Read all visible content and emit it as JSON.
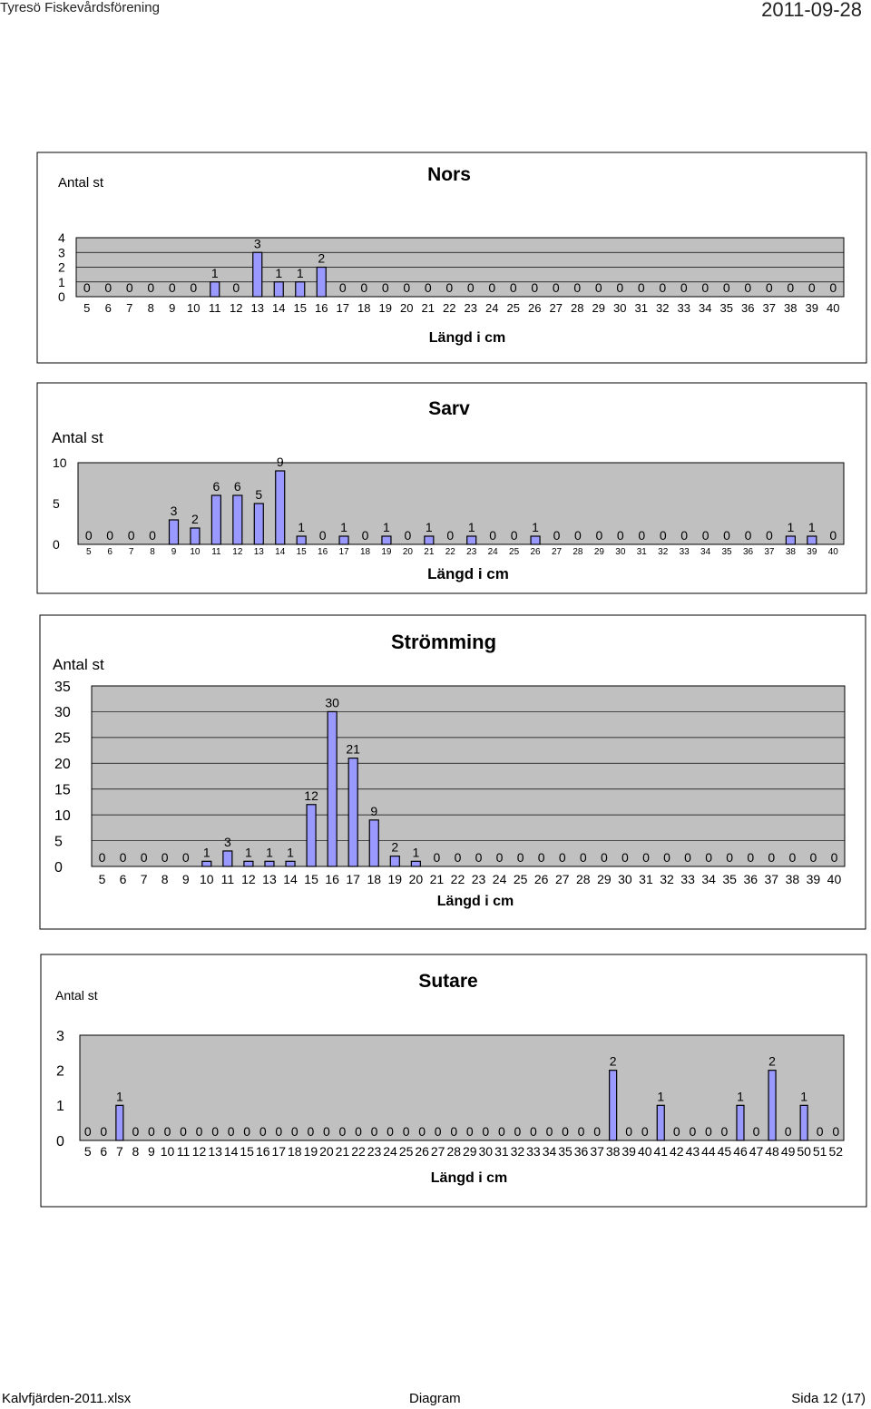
{
  "header": {
    "left": "Tyresö Fiskevårdsförening",
    "right": "2011-09-28"
  },
  "footer": {
    "left": "Kalvfjärden-2011.xlsx",
    "center": "Diagram",
    "right": "Sida 12 (17)"
  },
  "chart_data": [
    {
      "type": "bar",
      "title": "Nors",
      "ylabel": "Antal st",
      "xlabel": "Längd i cm",
      "ylim": [
        0,
        4
      ],
      "yticks": [
        "0",
        "1",
        "2",
        "3",
        "4"
      ],
      "categories": [
        "5",
        "6",
        "7",
        "8",
        "9",
        "10",
        "11",
        "12",
        "13",
        "14",
        "15",
        "16",
        "17",
        "18",
        "19",
        "20",
        "21",
        "22",
        "23",
        "24",
        "25",
        "26",
        "27",
        "28",
        "29",
        "30",
        "31",
        "32",
        "33",
        "34",
        "35",
        "36",
        "37",
        "38",
        "39",
        "40"
      ],
      "values": [
        0,
        0,
        0,
        0,
        0,
        0,
        1,
        0,
        3,
        1,
        1,
        2,
        0,
        0,
        0,
        0,
        0,
        0,
        0,
        0,
        0,
        0,
        0,
        0,
        0,
        0,
        0,
        0,
        0,
        0,
        0,
        0,
        0,
        0,
        0,
        0
      ],
      "grid": true
    },
    {
      "type": "bar",
      "title": "Sarv",
      "ylabel": "Antal st",
      "xlabel": "Längd i cm",
      "ylim": [
        0,
        10
      ],
      "yticks": [
        "0",
        "5",
        "10"
      ],
      "categories": [
        "5",
        "6",
        "7",
        "8",
        "9",
        "10",
        "11",
        "12",
        "13",
        "14",
        "15",
        "16",
        "17",
        "18",
        "19",
        "20",
        "21",
        "22",
        "23",
        "24",
        "25",
        "26",
        "27",
        "28",
        "29",
        "30",
        "31",
        "32",
        "33",
        "34",
        "35",
        "36",
        "37",
        "38",
        "39",
        "40"
      ],
      "values": [
        0,
        0,
        0,
        0,
        3,
        2,
        6,
        6,
        5,
        9,
        1,
        0,
        1,
        0,
        1,
        0,
        1,
        0,
        1,
        0,
        0,
        1,
        0,
        0,
        0,
        0,
        0,
        0,
        0,
        0,
        0,
        0,
        0,
        1,
        1,
        0
      ],
      "grid": false
    },
    {
      "type": "bar",
      "title": "Strömming",
      "ylabel": "Antal st",
      "xlabel": "Längd i cm",
      "ylim": [
        0,
        35
      ],
      "yticks": [
        "0",
        "5",
        "10",
        "15",
        "20",
        "25",
        "30",
        "35"
      ],
      "categories": [
        "5",
        "6",
        "7",
        "8",
        "9",
        "10",
        "11",
        "12",
        "13",
        "14",
        "15",
        "16",
        "17",
        "18",
        "19",
        "20",
        "21",
        "22",
        "23",
        "24",
        "25",
        "26",
        "27",
        "28",
        "29",
        "30",
        "31",
        "32",
        "33",
        "34",
        "35",
        "36",
        "37",
        "38",
        "39",
        "40"
      ],
      "values": [
        0,
        0,
        0,
        0,
        0,
        1,
        3,
        1,
        1,
        1,
        12,
        30,
        21,
        9,
        2,
        1,
        0,
        0,
        0,
        0,
        0,
        0,
        0,
        0,
        0,
        0,
        0,
        0,
        0,
        0,
        0,
        0,
        0,
        0,
        0,
        0
      ],
      "grid": true
    },
    {
      "type": "bar",
      "title": "Sutare",
      "ylabel": "Antal st",
      "xlabel": "Längd i cm",
      "ylim": [
        0,
        3
      ],
      "yticks": [
        "0",
        "1",
        "2",
        "3"
      ],
      "categories": [
        "5",
        "6",
        "7",
        "8",
        "9",
        "10",
        "11",
        "12",
        "13",
        "14",
        "15",
        "16",
        "17",
        "18",
        "19",
        "20",
        "21",
        "22",
        "23",
        "24",
        "25",
        "26",
        "27",
        "28",
        "29",
        "30",
        "31",
        "32",
        "33",
        "34",
        "35",
        "36",
        "37",
        "38",
        "39",
        "40",
        "41",
        "42",
        "43",
        "44",
        "45",
        "46",
        "47",
        "48",
        "49",
        "50",
        "51",
        "52"
      ],
      "values": [
        0,
        0,
        1,
        0,
        0,
        0,
        0,
        0,
        0,
        0,
        0,
        0,
        0,
        0,
        0,
        0,
        0,
        0,
        0,
        0,
        0,
        0,
        0,
        0,
        0,
        0,
        0,
        0,
        0,
        0,
        0,
        0,
        0,
        2,
        0,
        0,
        1,
        0,
        0,
        0,
        0,
        1,
        0,
        2,
        0,
        1,
        0,
        0
      ],
      "grid": false
    }
  ]
}
